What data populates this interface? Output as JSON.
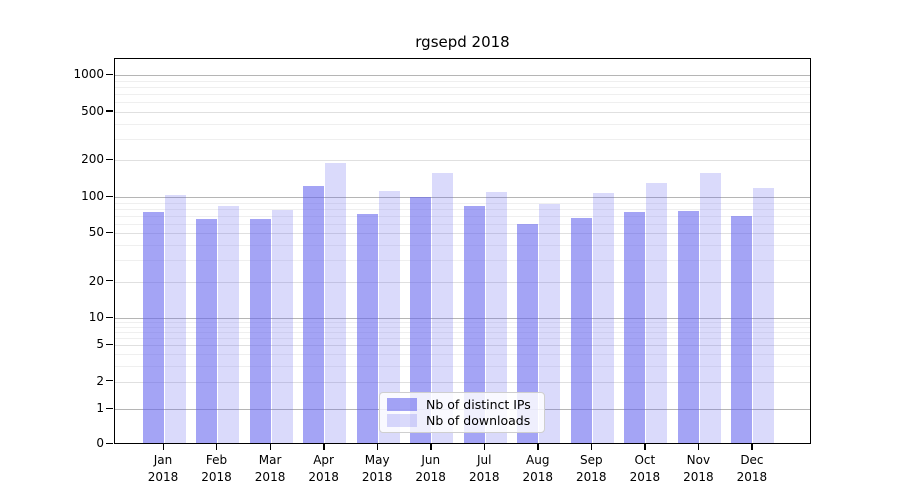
{
  "title": "rgsepd 2018",
  "chart_data": {
    "type": "bar",
    "title": "rgsepd 2018",
    "categories": [
      "Jan 2018",
      "Feb 2018",
      "Mar 2018",
      "Apr 2018",
      "May 2018",
      "Jun 2018",
      "Jul 2018",
      "Aug 2018",
      "Sep 2018",
      "Oct 2018",
      "Nov 2018",
      "Dec 2018"
    ],
    "series": [
      {
        "name": "Nb of distinct IPs",
        "color": "rgba(99,99,237,0.58)",
        "values": [
          75,
          66,
          66,
          124,
          73,
          100,
          85,
          60,
          67,
          75,
          76,
          70
        ]
      },
      {
        "name": "Nb of downloads",
        "color": "rgba(99,99,237,0.24)",
        "values": [
          104,
          85,
          78,
          190,
          113,
          158,
          110,
          88,
          107,
          130,
          158,
          118
        ]
      }
    ],
    "xlabel": "",
    "ylabel": "",
    "y_axis": {
      "scale": "symlog",
      "ticks": [
        0,
        1,
        2,
        5,
        10,
        20,
        50,
        100,
        200,
        500,
        1000
      ],
      "ylim": [
        0,
        1350
      ]
    },
    "grid": true,
    "legend_position": "lower center"
  },
  "colors": {
    "bar_distinct_ips": "rgba(99,99,237,0.58)",
    "bar_downloads": "rgba(99,99,237,0.24)",
    "grid_major": "#b5b5b5",
    "grid_minor": "#efefef",
    "axis": "#000000",
    "background": "#ffffff"
  }
}
